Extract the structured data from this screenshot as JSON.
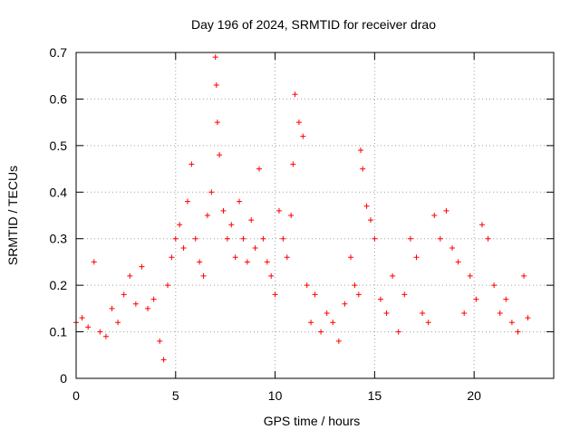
{
  "chart_data": {
    "type": "scatter",
    "title": "Day 196 of 2024, SRMTID for receiver drao",
    "xlabel": "GPS time / hours",
    "ylabel": "SRMTID / TECUs",
    "xlim": [
      0,
      24
    ],
    "ylim": [
      0,
      0.7
    ],
    "x_ticks": [
      0,
      5,
      10,
      15,
      20
    ],
    "x_tick_labels": [
      "0",
      "5",
      "10",
      "15",
      "20"
    ],
    "y_ticks": [
      0,
      0.1,
      0.2,
      0.3,
      0.4,
      0.5,
      0.6,
      0.7
    ],
    "y_tick_labels": [
      "0",
      "0.1",
      "0.2",
      "0.3",
      "0.4",
      "0.5",
      "0.6",
      "0.7"
    ],
    "grid": true,
    "marker": "+",
    "color": "#ff0000",
    "series": [
      {
        "name": "SRMTID",
        "x": [
          0.0,
          0.3,
          0.6,
          0.9,
          1.2,
          1.5,
          1.8,
          2.1,
          2.4,
          2.7,
          3.0,
          3.3,
          3.6,
          3.9,
          4.2,
          4.4,
          4.6,
          4.8,
          5.0,
          5.2,
          5.4,
          5.6,
          5.8,
          6.0,
          6.2,
          6.4,
          6.6,
          6.8,
          7.0,
          7.05,
          7.1,
          7.2,
          7.4,
          7.6,
          7.8,
          8.0,
          8.2,
          8.4,
          8.6,
          8.8,
          9.0,
          9.2,
          9.4,
          9.6,
          9.8,
          10.0,
          10.2,
          10.4,
          10.6,
          10.8,
          10.9,
          11.0,
          11.2,
          11.4,
          11.6,
          11.8,
          12.0,
          12.3,
          12.6,
          12.9,
          13.2,
          13.5,
          13.8,
          14.0,
          14.2,
          14.3,
          14.4,
          14.6,
          14.8,
          15.0,
          15.3,
          15.6,
          15.9,
          16.2,
          16.5,
          16.8,
          17.1,
          17.4,
          17.7,
          18.0,
          18.3,
          18.6,
          18.9,
          19.2,
          19.5,
          19.8,
          20.1,
          20.4,
          20.7,
          21.0,
          21.3,
          21.6,
          21.9,
          22.2,
          22.5,
          22.7
        ],
        "y": [
          0.12,
          0.13,
          0.11,
          0.25,
          0.1,
          0.09,
          0.15,
          0.12,
          0.18,
          0.22,
          0.16,
          0.24,
          0.15,
          0.17,
          0.08,
          0.04,
          0.2,
          0.26,
          0.3,
          0.33,
          0.28,
          0.38,
          0.46,
          0.3,
          0.25,
          0.22,
          0.35,
          0.4,
          0.69,
          0.63,
          0.55,
          0.48,
          0.36,
          0.3,
          0.33,
          0.26,
          0.38,
          0.3,
          0.25,
          0.34,
          0.28,
          0.45,
          0.3,
          0.25,
          0.22,
          0.18,
          0.36,
          0.3,
          0.26,
          0.35,
          0.46,
          0.61,
          0.55,
          0.52,
          0.2,
          0.12,
          0.18,
          0.1,
          0.14,
          0.12,
          0.08,
          0.16,
          0.26,
          0.2,
          0.18,
          0.49,
          0.45,
          0.37,
          0.34,
          0.3,
          0.17,
          0.14,
          0.22,
          0.1,
          0.18,
          0.3,
          0.26,
          0.14,
          0.12,
          0.35,
          0.3,
          0.36,
          0.28,
          0.25,
          0.14,
          0.22,
          0.17,
          0.33,
          0.3,
          0.2,
          0.14,
          0.17,
          0.12,
          0.1,
          0.22,
          0.13
        ]
      }
    ]
  }
}
